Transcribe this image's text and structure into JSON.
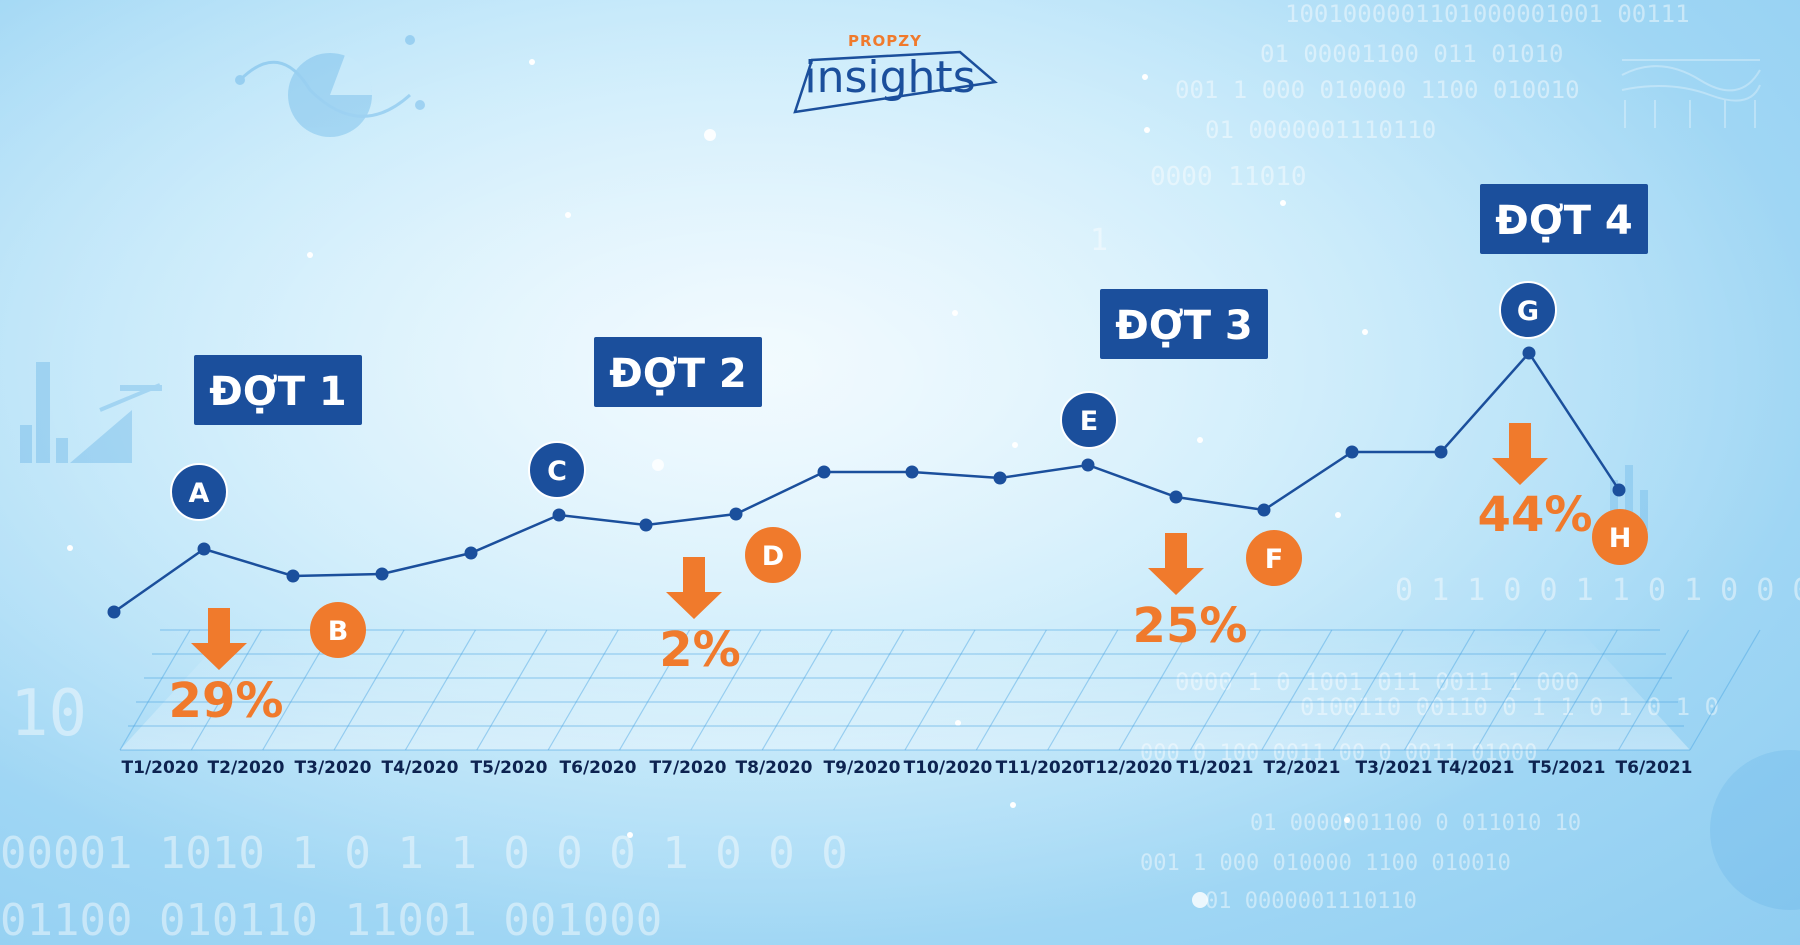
{
  "logo": {
    "brand_top": "PROPZY",
    "brand_main": "insights"
  },
  "chart_data": {
    "type": "line",
    "x": [
      "T1/2020",
      "T2/2020",
      "T3/2020",
      "T4/2020",
      "T5/2020",
      "T6/2020",
      "T7/2020",
      "T8/2020",
      "T9/2020",
      "T10/2020",
      "T11/2020",
      "T12/2020",
      "T1/2021",
      "T2/2021",
      "T3/2021",
      "T4/2021",
      "T5/2021",
      "T6/2021"
    ],
    "grid": true,
    "legend": "none",
    "colors": {
      "line": "#1b4f9c",
      "peak_marker": "#1b4f9c",
      "trough_marker": "#f07a2c",
      "drop_arrow": "#f07a2c",
      "phase_box": "#1b4f9c"
    },
    "phases": [
      {
        "label": "ĐỢT 1",
        "start_index": 1,
        "end_index": 2
      },
      {
        "label": "ĐỢT 2",
        "start_index": 5,
        "end_index": 7
      },
      {
        "label": "ĐỢT 3",
        "start_index": 11,
        "end_index": 13
      },
      {
        "label": "ĐỢT 4",
        "start_index": 16,
        "end_index": 17
      }
    ],
    "markers": [
      {
        "letter": "A",
        "index": 1,
        "kind": "peak"
      },
      {
        "letter": "B",
        "index": 2,
        "kind": "trough"
      },
      {
        "letter": "C",
        "index": 5,
        "kind": "peak"
      },
      {
        "letter": "D",
        "index": 7,
        "kind": "trough"
      },
      {
        "letter": "E",
        "index": 11,
        "kind": "peak"
      },
      {
        "letter": "F",
        "index": 13,
        "kind": "trough"
      },
      {
        "letter": "G",
        "index": 16,
        "kind": "peak"
      },
      {
        "letter": "H",
        "index": 17,
        "kind": "trough"
      }
    ],
    "drops": [
      "29%",
      "2%",
      "25%",
      "44%"
    ]
  }
}
